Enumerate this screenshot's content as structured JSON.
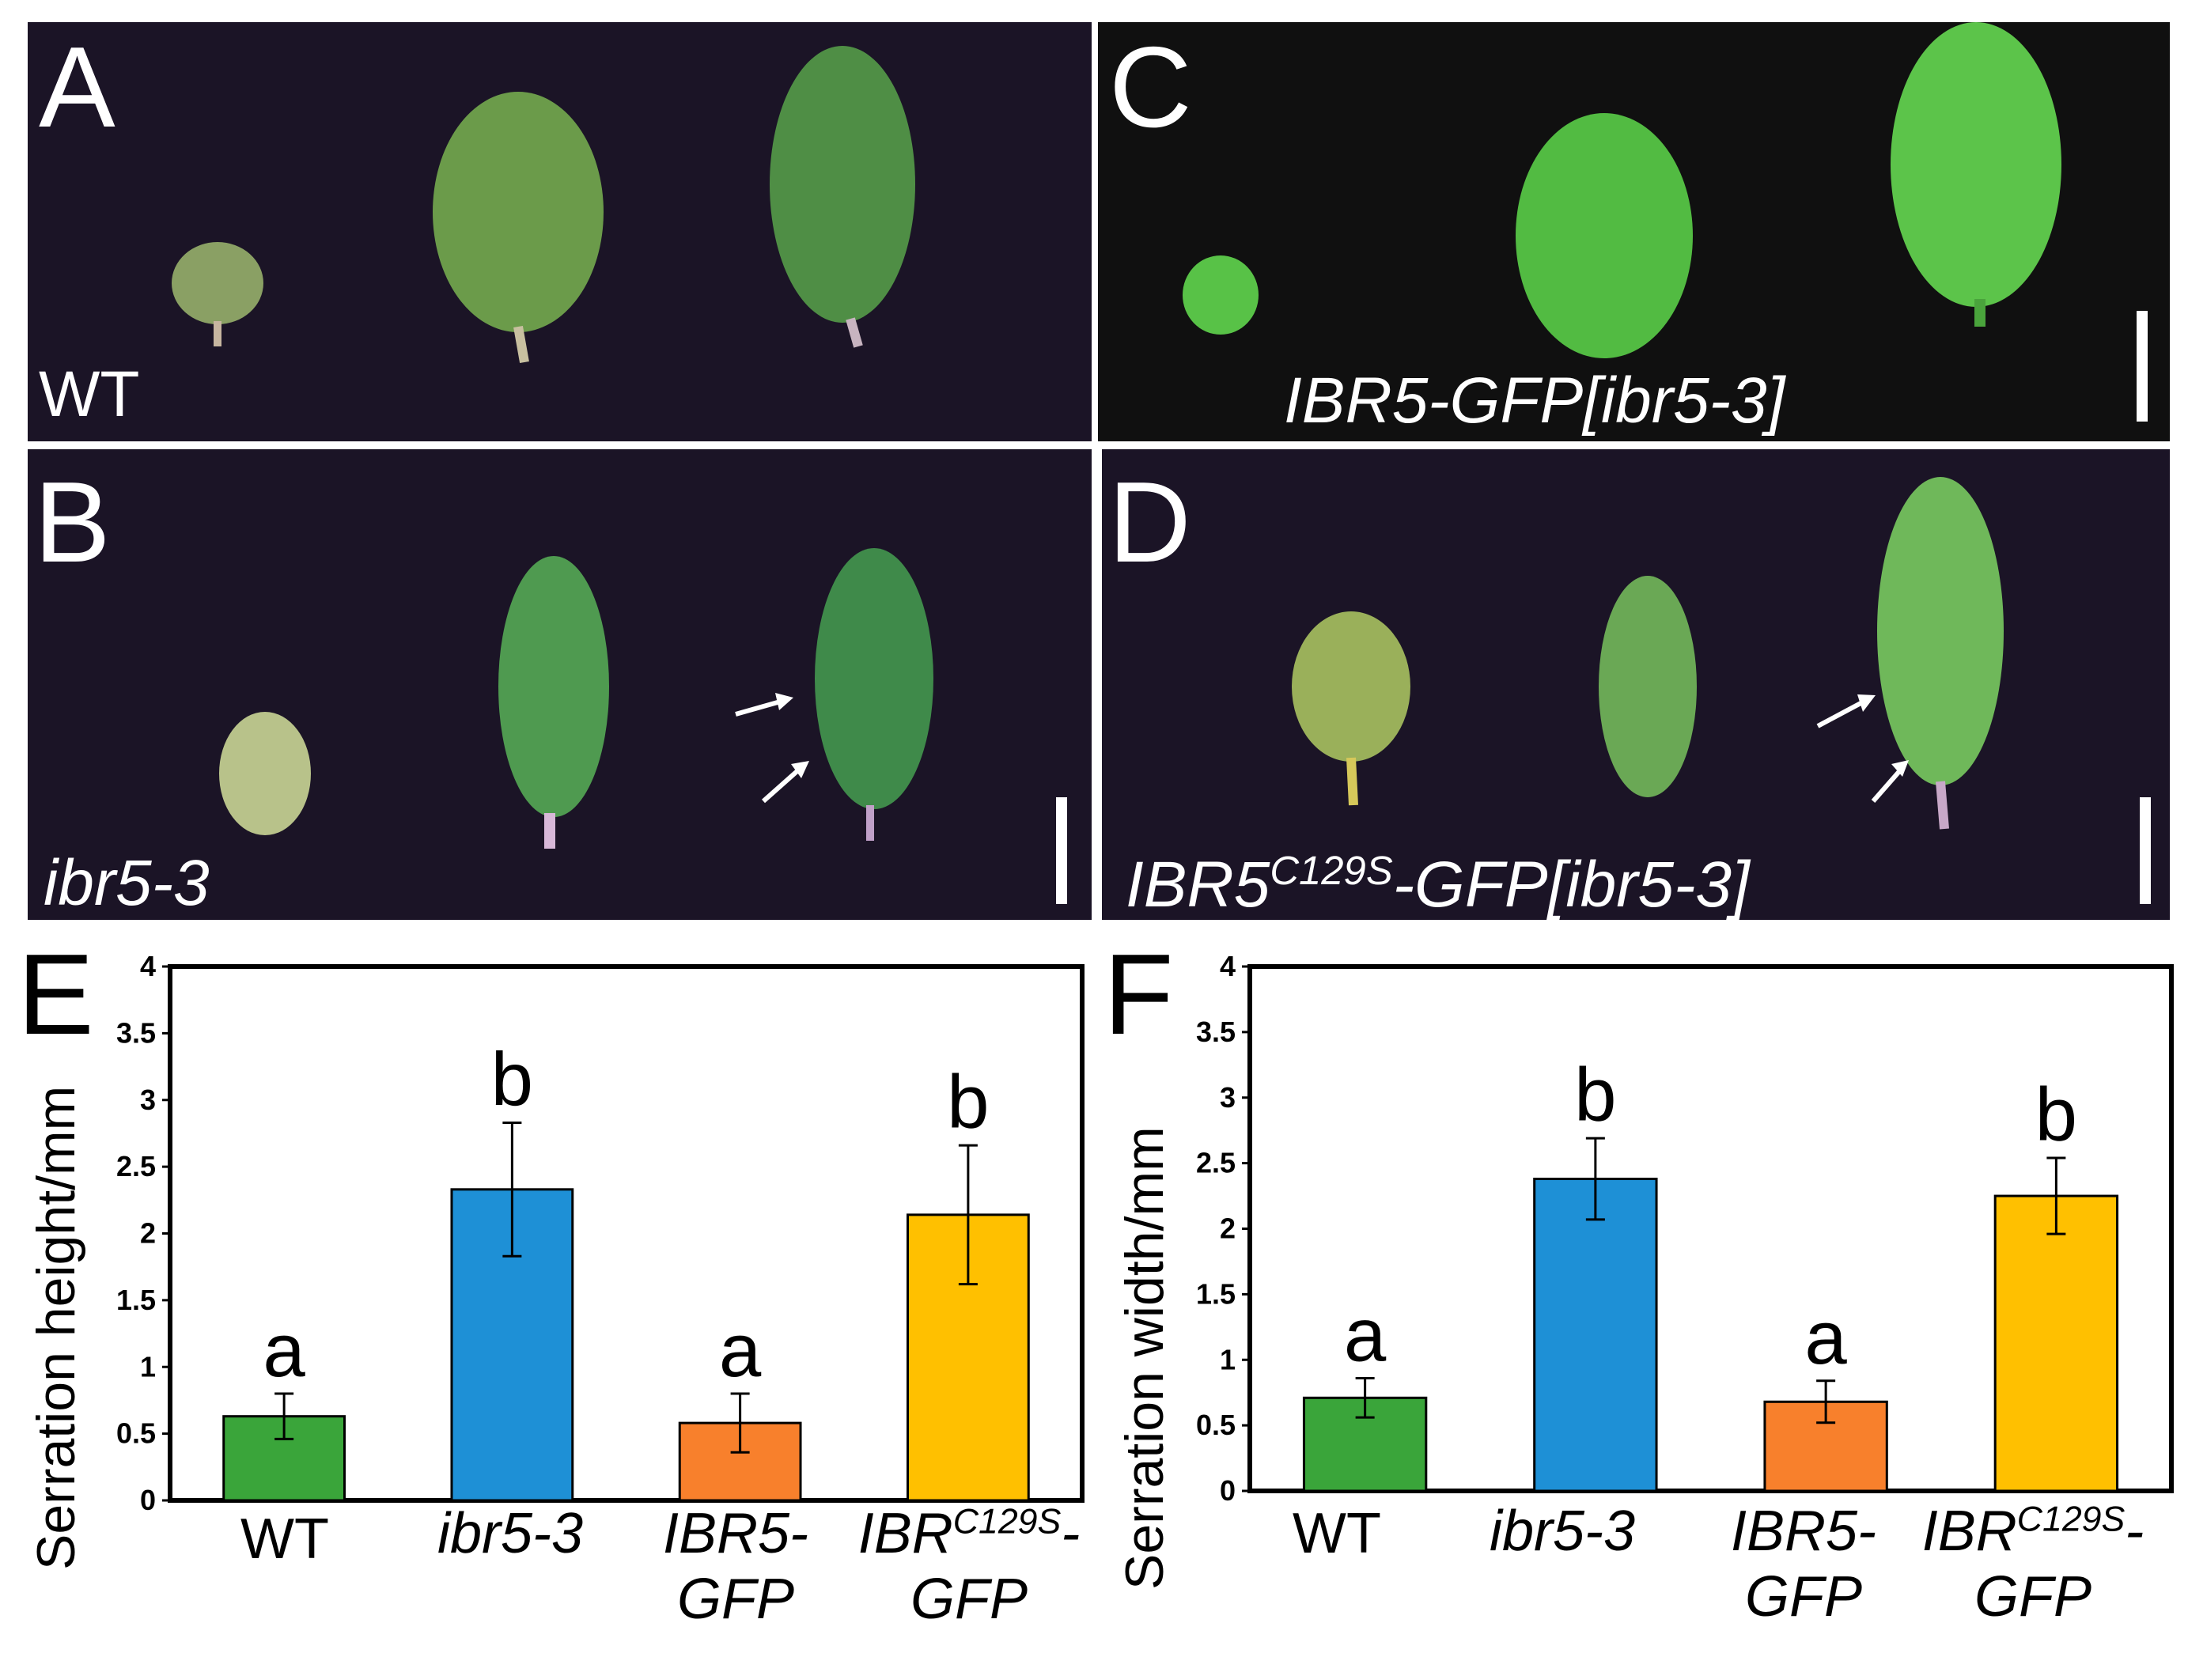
{
  "photo_panels": {
    "A": {
      "letter": "A",
      "caption": "WT"
    },
    "B": {
      "letter": "B",
      "caption": "ibr5-3"
    },
    "C": {
      "letter": "C",
      "caption": "IBR5-GFP[ibr5-3]"
    },
    "D": {
      "letter": "D",
      "caption_pre": "IBR5",
      "caption_sup": "C129S",
      "caption_post": "-GFP[ibr5-3]"
    }
  },
  "colors": {
    "panel_bg": "#1b1426",
    "panel_c_bg": "#101010",
    "leaf": "#5f9440",
    "leaf_c": "#58c247",
    "wt": "#3aa53a",
    "ibr5_3": "#1e90d6",
    "ibr5_gfp": "#f8802c",
    "ibr_c129s_gfp": "#ffc000"
  },
  "chart_labels": {
    "E": "E",
    "F": "F"
  },
  "x_categories": {
    "wt": "WT",
    "ibr5_3": "ibr5-3",
    "ibr5_gfp_l1": "IBR5-",
    "ibr5_gfp_l2": "GFP",
    "c129s_pre": "IBR",
    "c129s_sup": "C129S",
    "c129s_post": "-",
    "c129s_l2": "GFP"
  },
  "chart_data": [
    {
      "type": "bar",
      "panel": "E",
      "ylabel": "Serration height/mm",
      "ylim": [
        0,
        4
      ],
      "yticks": [
        "0",
        "0.5",
        "1",
        "1.5",
        "2",
        "2.5",
        "3",
        "3.5",
        "4"
      ],
      "categories": [
        "WT",
        "ibr5-3",
        "IBR5-GFP",
        "IBRC129S-GFP"
      ],
      "values": [
        0.63,
        2.33,
        0.58,
        2.14
      ],
      "errors": [
        0.17,
        0.5,
        0.22,
        0.52
      ],
      "significance": [
        "a",
        "b",
        "a",
        "b"
      ]
    },
    {
      "type": "bar",
      "panel": "F",
      "ylabel": "Serration width/mm",
      "ylim": [
        0,
        4
      ],
      "yticks": [
        "0",
        "0.5",
        "1",
        "1.5",
        "2",
        "2.5",
        "3",
        "3.5",
        "4"
      ],
      "categories": [
        "WT",
        "ibr5-3",
        "IBR5-GFP",
        "IBRC129S-GFP"
      ],
      "values": [
        0.71,
        2.38,
        0.68,
        2.25
      ],
      "errors": [
        0.15,
        0.31,
        0.16,
        0.29
      ],
      "significance": [
        "a",
        "b",
        "a",
        "b"
      ]
    }
  ]
}
